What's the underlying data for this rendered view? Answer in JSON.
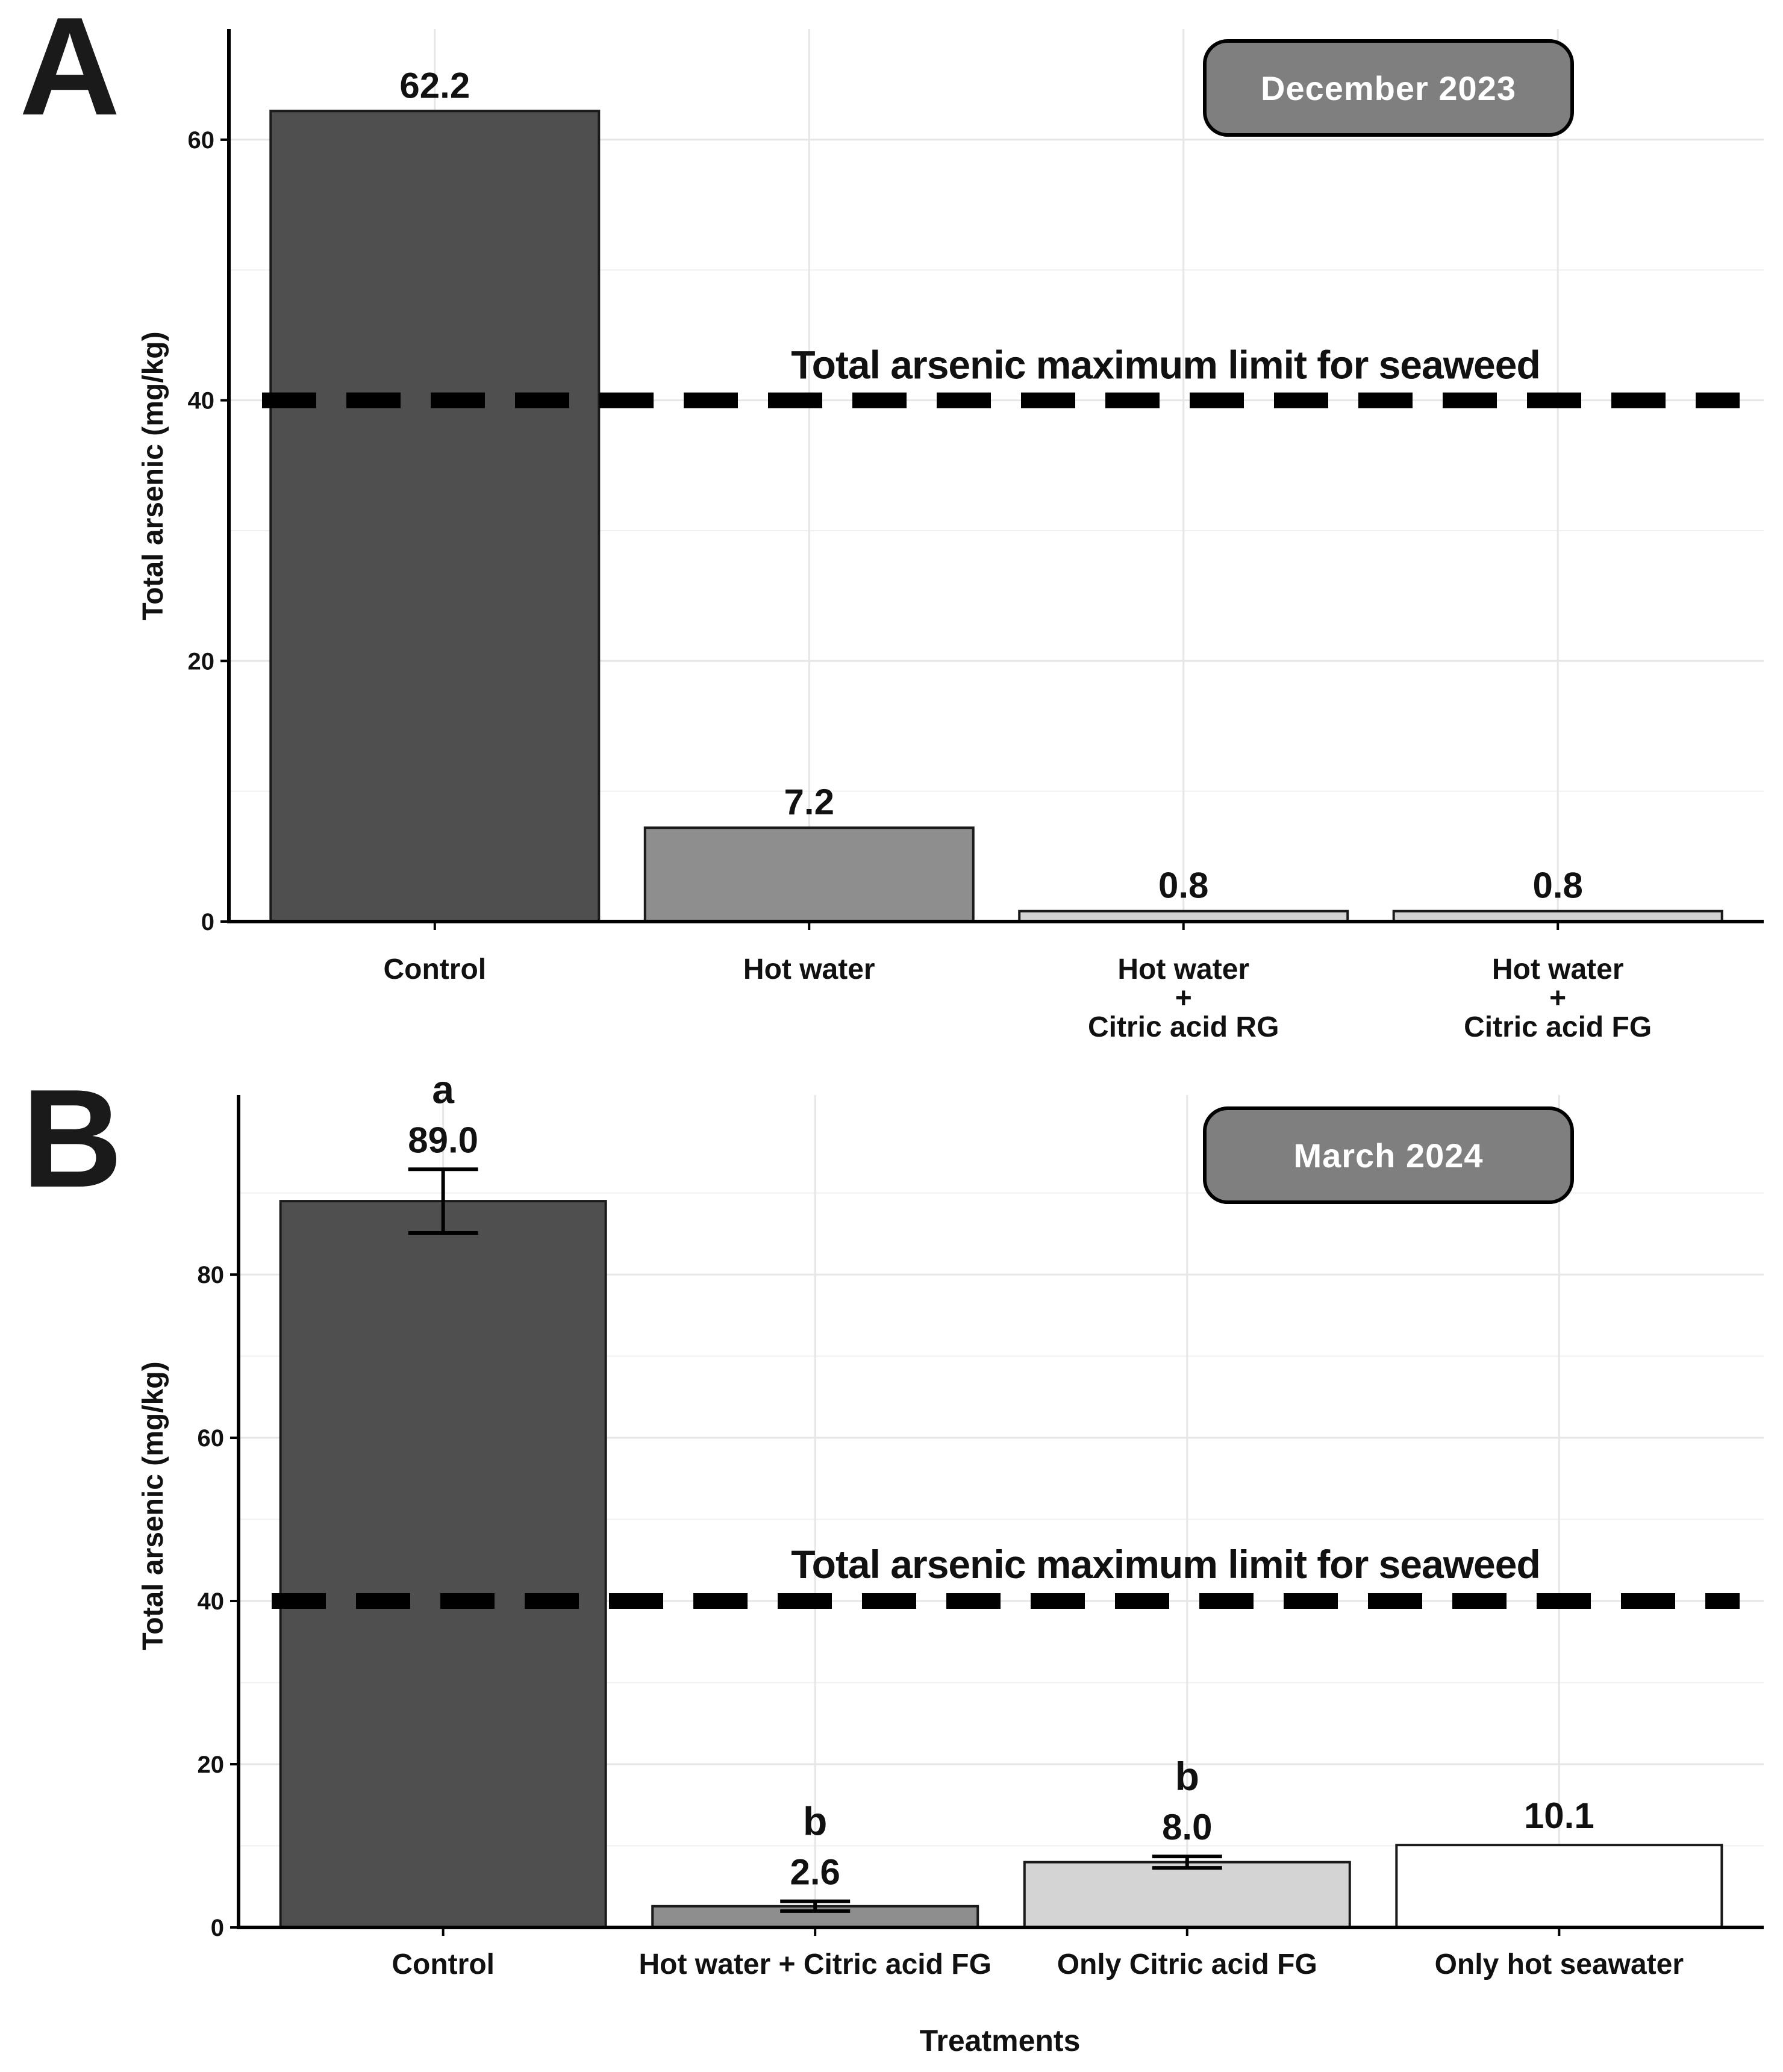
{
  "chart_data": [
    {
      "panel": "A",
      "type": "bar",
      "badge": "December 2023",
      "categories": [
        [
          "Control"
        ],
        [
          "Hot water"
        ],
        [
          "Hot water",
          "+",
          "Citric acid RG"
        ],
        [
          "Hot water",
          "+",
          "Citric acid FG"
        ]
      ],
      "values": [
        62.2,
        7.2,
        0.8,
        0.8
      ],
      "value_labels": [
        "62.2",
        "7.2",
        "0.8",
        "0.8"
      ],
      "bar_colors": [
        "#4f4f4f",
        "#8e8e8e",
        "#d4d4d4",
        "#d4d4d4"
      ],
      "significance": [],
      "error": [],
      "ylabel": "Total arsenic (mg/kg)",
      "xlabel": "",
      "ylim": [
        0,
        68.5
      ],
      "yticks": [
        0,
        20,
        40,
        60
      ],
      "reference_line": {
        "y": 40,
        "label": "Total arsenic maximum limit for seaweed"
      }
    },
    {
      "panel": "B",
      "type": "bar",
      "badge": "March 2024",
      "categories": [
        [
          "Control"
        ],
        [
          "Hot water + Citric acid FG"
        ],
        [
          "Only Citric acid FG"
        ],
        [
          "Only hot seawater"
        ]
      ],
      "values": [
        89.0,
        2.6,
        8.0,
        10.1
      ],
      "value_labels": [
        "89.0",
        "2.6",
        "8.0",
        "10.1"
      ],
      "bar_colors": [
        "#4f4f4f",
        "#8e8e8e",
        "#d4d4d4",
        "#ffffff"
      ],
      "significance": [
        "a",
        "b",
        "b",
        ""
      ],
      "error": [
        3.9,
        0.6,
        0.7,
        null
      ],
      "ylabel": "Total arsenic (mg/kg)",
      "xlabel": "Treatments",
      "ylim": [
        0,
        102
      ],
      "yticks": [
        0,
        20,
        40,
        60,
        80
      ],
      "reference_line": {
        "y": 40,
        "label": "Total arsenic maximum limit for seaweed"
      }
    }
  ]
}
